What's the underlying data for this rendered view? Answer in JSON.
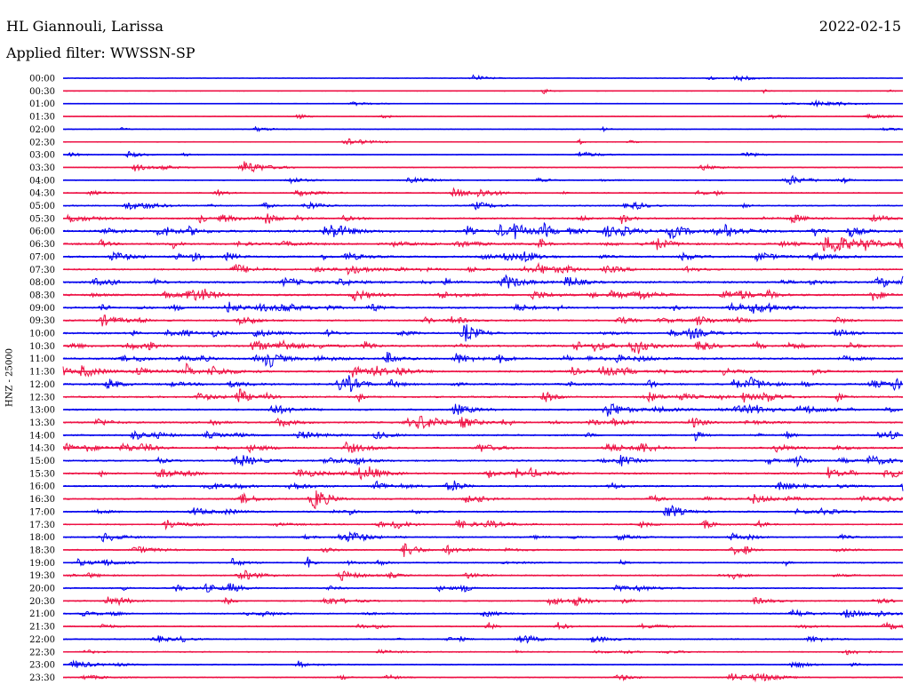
{
  "header": {
    "station": "HL Giannouli, Larissa",
    "date": "2022-02-15",
    "filter": "Applied filter: WWSSN-SP"
  },
  "chart_data": {
    "type": "line",
    "title": "HL Giannouli, Larissa",
    "date": "2022-02-15",
    "filter": "Applied filter: WWSSN-SP",
    "ylabel": "HNZ - 25000",
    "xlabel": "",
    "trace_labels": [
      "00:00",
      "00:30",
      "01:00",
      "01:30",
      "02:00",
      "02:30",
      "03:00",
      "03:30",
      "04:00",
      "04:30",
      "05:00",
      "05:30",
      "06:00",
      "06:30",
      "07:00",
      "07:30",
      "08:00",
      "08:30",
      "09:00",
      "09:30",
      "10:00",
      "10:30",
      "11:00",
      "11:30",
      "12:00",
      "12:30",
      "13:00",
      "13:30",
      "14:00",
      "14:30",
      "15:00",
      "15:30",
      "16:00",
      "16:30",
      "17:00",
      "17:30",
      "18:00",
      "18:30",
      "19:00",
      "19:30",
      "20:00",
      "20:30",
      "21:00",
      "21:30",
      "22:00",
      "22:30",
      "23:00",
      "23:30"
    ],
    "trace_colors": [
      "#0000ee",
      "#ee1144"
    ],
    "trace_duration_minutes": 30,
    "activity_level": [
      0.05,
      0.05,
      0.06,
      0.06,
      0.06,
      0.08,
      0.1,
      0.12,
      0.18,
      0.22,
      0.28,
      0.45,
      0.65,
      0.55,
      0.45,
      0.4,
      0.55,
      0.5,
      0.5,
      0.4,
      0.45,
      0.55,
      0.55,
      0.5,
      0.5,
      0.45,
      0.45,
      0.45,
      0.4,
      0.4,
      0.4,
      0.45,
      0.4,
      0.4,
      0.35,
      0.3,
      0.3,
      0.3,
      0.3,
      0.3,
      0.3,
      0.25,
      0.25,
      0.25,
      0.25,
      0.2,
      0.2,
      0.15
    ]
  }
}
